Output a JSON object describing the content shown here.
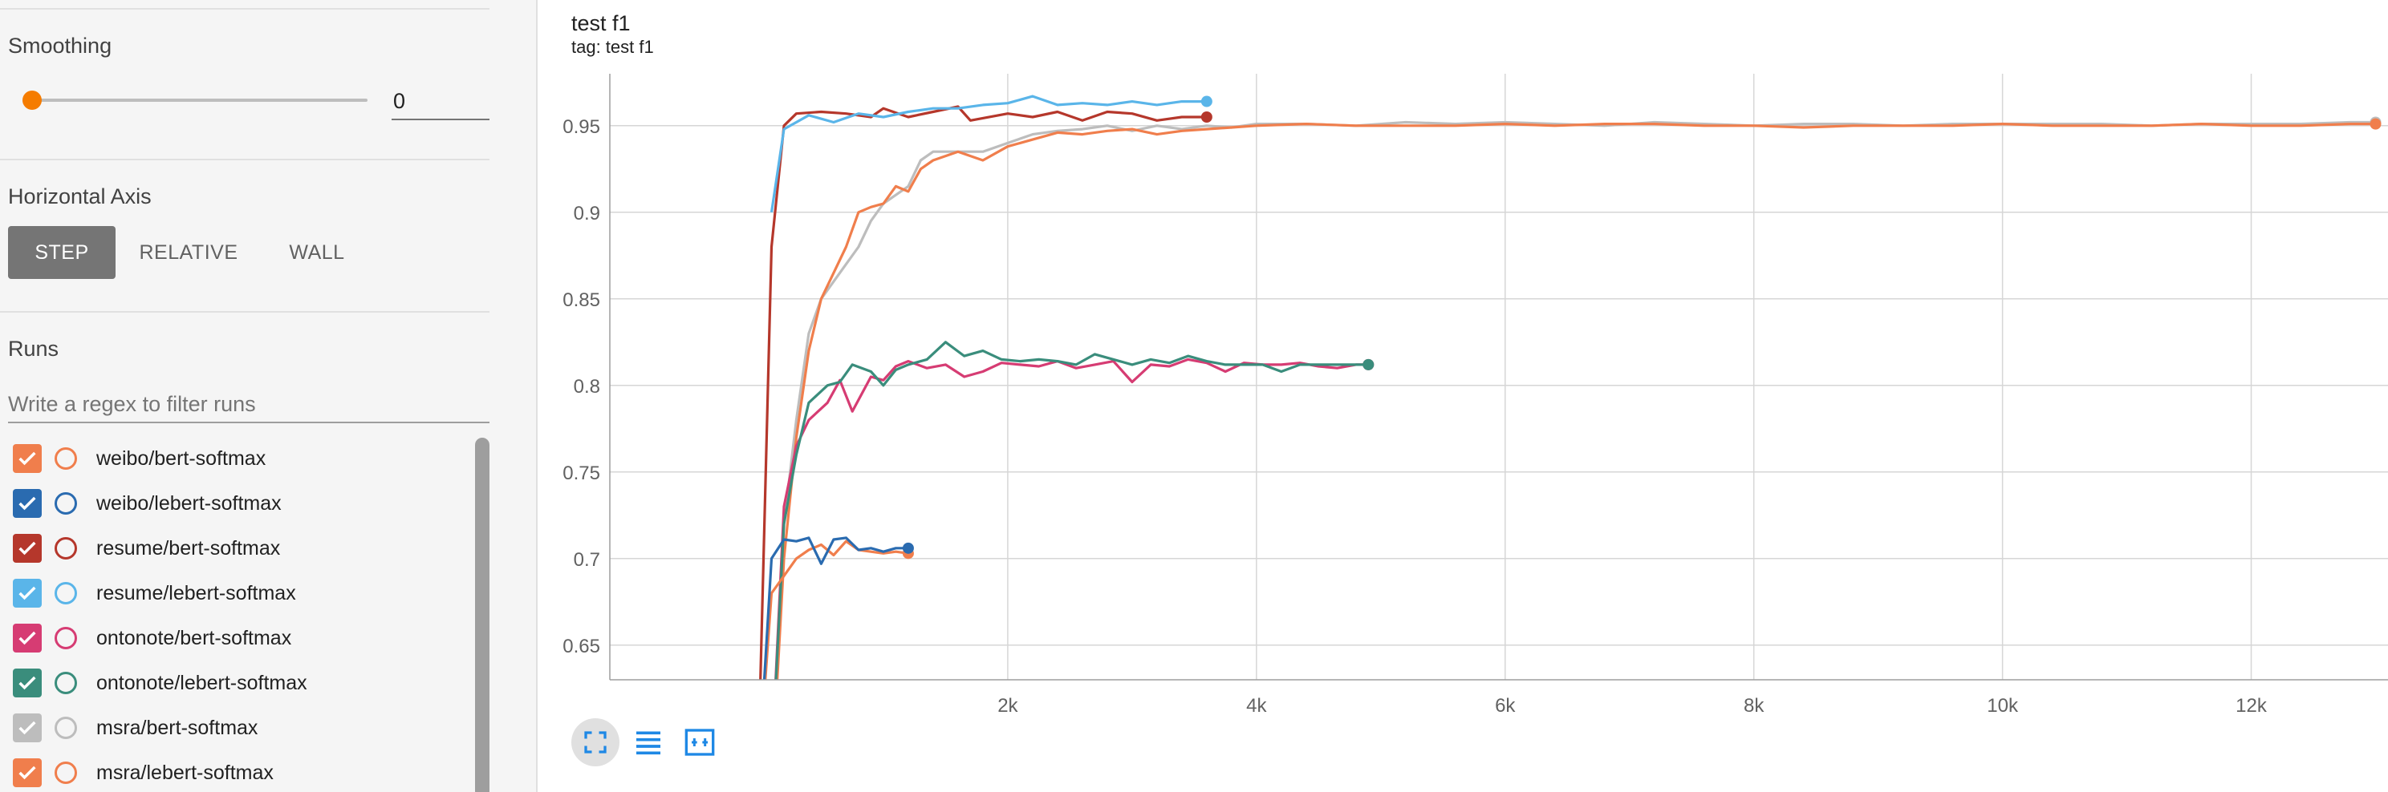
{
  "sidebar": {
    "smoothing": {
      "label": "Smoothing",
      "value": "0",
      "slider_level": 0
    },
    "horizontal_axis": {
      "label": "Horizontal Axis",
      "options": [
        "STEP",
        "RELATIVE",
        "WALL"
      ],
      "selected": "STEP"
    },
    "runs": {
      "label": "Runs",
      "filter_placeholder": "Write a regex to filter runs",
      "items": [
        {
          "label": "weibo/bert-softmax",
          "color": "#f07e4c",
          "checked": true
        },
        {
          "label": "weibo/lebert-softmax",
          "color": "#2a6bb0",
          "checked": true
        },
        {
          "label": "resume/bert-softmax",
          "color": "#b5372b",
          "checked": true
        },
        {
          "label": "resume/lebert-softmax",
          "color": "#5ab5e9",
          "checked": true
        },
        {
          "label": "ontonote/bert-softmax",
          "color": "#d63c73",
          "checked": true
        },
        {
          "label": "ontonote/lebert-softmax",
          "color": "#3a8d7c",
          "checked": true
        },
        {
          "label": "msra/bert-softmax",
          "color": "#bdbdbd",
          "checked": true
        },
        {
          "label": "msra/lebert-softmax",
          "color": "#f07e4c",
          "checked": true
        }
      ]
    }
  },
  "chart": {
    "title": "test f1",
    "tag": "tag: test f1",
    "toolbar": [
      "fullscreen-icon",
      "list-icon",
      "fit-domain-icon"
    ]
  },
  "chart_data": {
    "type": "line",
    "xlim": [
      -1200,
      13100
    ],
    "ylim": [
      0.63,
      0.98
    ],
    "x_ticks": [
      2000,
      4000,
      6000,
      8000,
      10000,
      12000
    ],
    "x_tick_labels": [
      "2k",
      "4k",
      "6k",
      "8k",
      "10k",
      "12k"
    ],
    "y_ticks": [
      0.65,
      0.7,
      0.75,
      0.8,
      0.85,
      0.9,
      0.95
    ],
    "y_tick_labels": [
      "0.65",
      "0.7",
      "0.75",
      "0.8",
      "0.85",
      "0.9",
      "0.95"
    ],
    "grid": true,
    "series": [
      {
        "name": "weibo/bert-softmax",
        "color": "#f07e4c",
        "x": [
          0,
          100,
          200,
          300,
          400,
          500,
          600,
          700,
          800,
          900,
          1000,
          1100,
          1200
        ],
        "y": [
          0.58,
          0.68,
          0.69,
          0.7,
          0.705,
          0.708,
          0.702,
          0.71,
          0.705,
          0.704,
          0.703,
          0.704,
          0.703
        ]
      },
      {
        "name": "weibo/lebert-softmax",
        "color": "#2a6bb0",
        "x": [
          0,
          100,
          200,
          300,
          400,
          500,
          600,
          700,
          800,
          900,
          1000,
          1100,
          1200
        ],
        "y": [
          0.58,
          0.7,
          0.711,
          0.71,
          0.712,
          0.697,
          0.711,
          0.712,
          0.705,
          0.706,
          0.704,
          0.706,
          0.706
        ]
      },
      {
        "name": "resume/bert-softmax",
        "color": "#b5372b",
        "x": [
          0,
          100,
          200,
          300,
          500,
          700,
          900,
          1000,
          1200,
          1400,
          1600,
          1700,
          2000,
          2200,
          2400,
          2600,
          2800,
          3000,
          3200,
          3400,
          3600
        ],
        "y": [
          0.6,
          0.88,
          0.95,
          0.957,
          0.958,
          0.957,
          0.955,
          0.96,
          0.955,
          0.958,
          0.961,
          0.953,
          0.957,
          0.955,
          0.958,
          0.953,
          0.958,
          0.957,
          0.953,
          0.955,
          0.955
        ]
      },
      {
        "name": "resume/lebert-softmax",
        "color": "#5ab5e9",
        "x": [
          100,
          200,
          400,
          600,
          800,
          1000,
          1200,
          1400,
          1600,
          1800,
          2000,
          2200,
          2400,
          2600,
          2800,
          3000,
          3200,
          3400,
          3600
        ],
        "y": [
          0.9,
          0.948,
          0.956,
          0.952,
          0.957,
          0.955,
          0.958,
          0.96,
          0.96,
          0.962,
          0.963,
          0.967,
          0.962,
          0.963,
          0.962,
          0.964,
          0.962,
          0.964,
          0.964
        ]
      },
      {
        "name": "ontonote/bert-softmax",
        "color": "#d63c73",
        "x": [
          100,
          200,
          300,
          400,
          550,
          650,
          750,
          900,
          1000,
          1100,
          1200,
          1350,
          1500,
          1650,
          1800,
          1950,
          2100,
          2250,
          2400,
          2550,
          2700,
          2850,
          3000,
          3150,
          3300,
          3450,
          3600,
          3750,
          3900,
          4050,
          4200,
          4350,
          4500,
          4650,
          4800,
          4900
        ],
        "y": [
          0.58,
          0.73,
          0.765,
          0.78,
          0.79,
          0.803,
          0.785,
          0.805,
          0.803,
          0.811,
          0.814,
          0.81,
          0.812,
          0.805,
          0.808,
          0.813,
          0.812,
          0.811,
          0.814,
          0.81,
          0.812,
          0.814,
          0.802,
          0.812,
          0.811,
          0.815,
          0.813,
          0.808,
          0.813,
          0.812,
          0.812,
          0.813,
          0.811,
          0.81,
          0.812,
          0.812
        ]
      },
      {
        "name": "ontonote/lebert-softmax",
        "color": "#3a8d7c",
        "x": [
          100,
          200,
          300,
          400,
          550,
          650,
          750,
          900,
          1000,
          1100,
          1200,
          1350,
          1500,
          1650,
          1800,
          1950,
          2100,
          2250,
          2400,
          2550,
          2700,
          2850,
          3000,
          3150,
          3300,
          3450,
          3600,
          3750,
          3900,
          4050,
          4200,
          4350,
          4500,
          4650,
          4800,
          4900
        ],
        "y": [
          0.58,
          0.72,
          0.76,
          0.79,
          0.8,
          0.802,
          0.812,
          0.808,
          0.8,
          0.809,
          0.812,
          0.815,
          0.825,
          0.817,
          0.82,
          0.815,
          0.814,
          0.815,
          0.814,
          0.812,
          0.818,
          0.815,
          0.812,
          0.815,
          0.813,
          0.817,
          0.814,
          0.812,
          0.812,
          0.812,
          0.808,
          0.812,
          0.812,
          0.812,
          0.812,
          0.812
        ]
      },
      {
        "name": "msra/bert-softmax",
        "color": "#bdbdbd",
        "x": [
          100,
          200,
          300,
          400,
          500,
          600,
          700,
          800,
          900,
          1000,
          1100,
          1200,
          1300,
          1400,
          1600,
          1800,
          2000,
          2200,
          2400,
          2600,
          2800,
          3000,
          3200,
          3400,
          3600,
          3800,
          4000,
          4400,
          4800,
          5200,
          5600,
          6000,
          6400,
          6800,
          7200,
          7600,
          8000,
          8400,
          8800,
          9200,
          9600,
          10000,
          10400,
          10800,
          11200,
          11600,
          12000,
          12400,
          12800,
          13000
        ],
        "y": [
          0.58,
          0.72,
          0.78,
          0.83,
          0.85,
          0.86,
          0.87,
          0.88,
          0.895,
          0.905,
          0.91,
          0.915,
          0.93,
          0.935,
          0.935,
          0.935,
          0.94,
          0.945,
          0.947,
          0.948,
          0.95,
          0.947,
          0.95,
          0.948,
          0.95,
          0.949,
          0.951,
          0.951,
          0.95,
          0.952,
          0.951,
          0.952,
          0.951,
          0.95,
          0.952,
          0.951,
          0.95,
          0.951,
          0.951,
          0.95,
          0.951,
          0.951,
          0.951,
          0.951,
          0.95,
          0.951,
          0.951,
          0.951,
          0.952,
          0.952
        ]
      },
      {
        "name": "msra/lebert-softmax",
        "color": "#f07e4c",
        "x": [
          100,
          200,
          300,
          400,
          500,
          600,
          700,
          800,
          900,
          1000,
          1100,
          1200,
          1300,
          1400,
          1600,
          1800,
          2000,
          2200,
          2400,
          2600,
          2800,
          3000,
          3200,
          3400,
          3600,
          3800,
          4000,
          4400,
          4800,
          5200,
          5600,
          6000,
          6400,
          6800,
          7200,
          7600,
          8000,
          8400,
          8800,
          9200,
          9600,
          10000,
          10400,
          10800,
          11200,
          11600,
          12000,
          12400,
          12800,
          13000
        ],
        "y": [
          0.57,
          0.7,
          0.77,
          0.82,
          0.85,
          0.865,
          0.88,
          0.9,
          0.903,
          0.905,
          0.915,
          0.912,
          0.925,
          0.93,
          0.935,
          0.93,
          0.938,
          0.942,
          0.946,
          0.945,
          0.947,
          0.948,
          0.945,
          0.947,
          0.948,
          0.949,
          0.95,
          0.951,
          0.95,
          0.95,
          0.95,
          0.951,
          0.95,
          0.951,
          0.951,
          0.95,
          0.95,
          0.949,
          0.95,
          0.95,
          0.95,
          0.951,
          0.95,
          0.95,
          0.95,
          0.951,
          0.95,
          0.95,
          0.951,
          0.951
        ]
      }
    ]
  }
}
